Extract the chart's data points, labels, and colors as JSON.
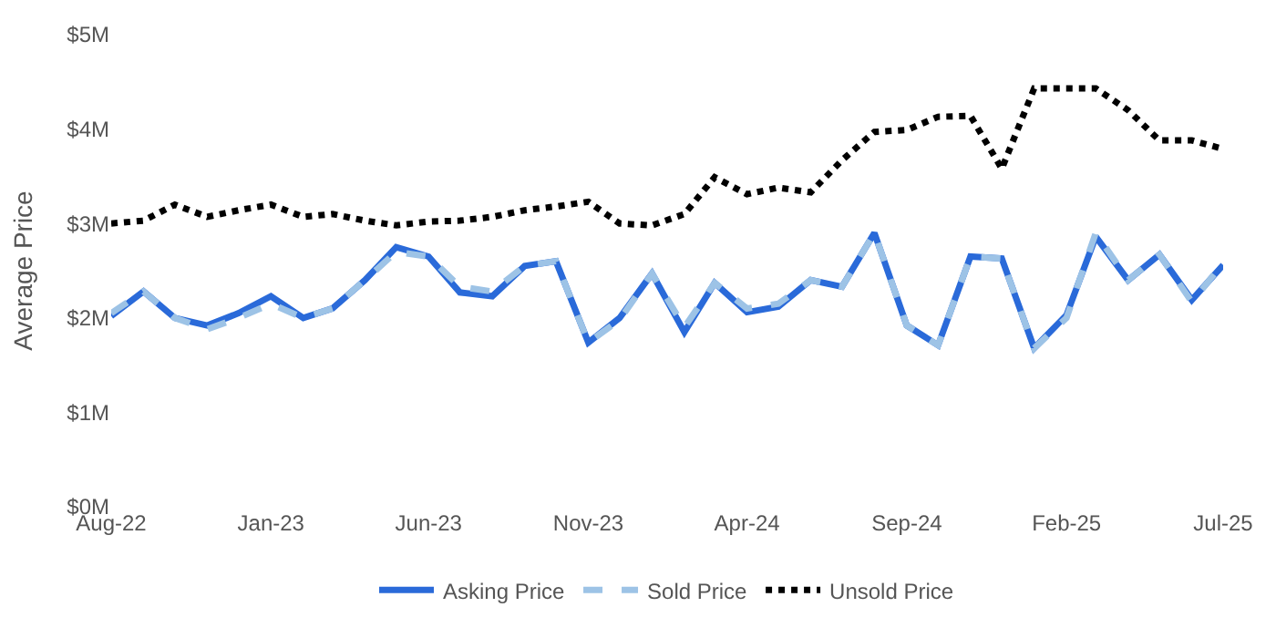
{
  "chart_data": {
    "type": "line",
    "ylabel": "Average Price",
    "x": [
      "2022-08",
      "2022-09",
      "2022-10",
      "2022-11",
      "2022-12",
      "2023-01",
      "2023-02",
      "2023-03",
      "2023-04",
      "2023-05",
      "2023-06",
      "2023-07",
      "2023-08",
      "2023-09",
      "2023-10",
      "2023-11",
      "2023-12",
      "2024-01",
      "2024-02",
      "2024-03",
      "2024-04",
      "2024-05",
      "2024-06",
      "2024-07",
      "2024-08",
      "2024-09",
      "2024-10",
      "2024-11",
      "2024-12",
      "2025-01",
      "2025-02",
      "2025-03",
      "2025-04",
      "2025-05",
      "2025-06",
      "2025-07"
    ],
    "series": [
      {
        "name": "Asking Price",
        "color": "#2a6ad9",
        "line_style": "solid",
        "values": [
          2.02,
          2.28,
          2.0,
          1.92,
          2.05,
          2.23,
          2.0,
          2.1,
          2.4,
          2.75,
          2.65,
          2.27,
          2.23,
          2.55,
          2.6,
          1.74,
          2.0,
          2.47,
          1.85,
          2.37,
          2.06,
          2.12,
          2.4,
          2.33,
          2.9,
          1.92,
          1.71,
          2.65,
          2.63,
          1.68,
          2.03,
          2.86,
          2.4,
          2.67,
          2.19,
          2.56
        ]
      },
      {
        "name": "Sold Price",
        "color": "#9dc3e6",
        "line_style": "dashed",
        "values": [
          2.05,
          2.28,
          2.0,
          1.88,
          2.0,
          2.15,
          2.0,
          2.1,
          2.4,
          2.7,
          2.65,
          2.33,
          2.28,
          2.55,
          2.6,
          1.74,
          1.98,
          2.47,
          1.9,
          2.37,
          2.1,
          2.15,
          2.4,
          2.33,
          2.9,
          1.92,
          1.71,
          2.65,
          2.63,
          1.68,
          2.0,
          2.9,
          2.4,
          2.67,
          2.17,
          2.58
        ]
      },
      {
        "name": "Unsold Price",
        "color": "#000000",
        "line_style": "dotted",
        "values": [
          3.0,
          3.03,
          3.2,
          3.07,
          3.14,
          3.2,
          3.07,
          3.1,
          3.03,
          2.98,
          3.02,
          3.03,
          3.07,
          3.14,
          3.18,
          3.23,
          3.0,
          2.98,
          3.1,
          3.49,
          3.31,
          3.38,
          3.33,
          3.67,
          3.97,
          3.99,
          4.13,
          4.14,
          3.58,
          4.43,
          4.43,
          4.43,
          4.2,
          3.88,
          3.88,
          3.79
        ]
      }
    ],
    "xlim": [
      "2022-08",
      "2025-07"
    ],
    "xticks": [
      {
        "value": "2022-08",
        "label": "Aug-22"
      },
      {
        "value": "2023-01",
        "label": "Jan-23"
      },
      {
        "value": "2023-06",
        "label": "Jun-23"
      },
      {
        "value": "2023-11",
        "label": "Nov-23"
      },
      {
        "value": "2024-04",
        "label": "Apr-24"
      },
      {
        "value": "2024-09",
        "label": "Sep-24"
      },
      {
        "value": "2025-02",
        "label": "Feb-25"
      },
      {
        "value": "2025-07",
        "label": "Jul-25"
      }
    ],
    "ylim": [
      0,
      5
    ],
    "yticks": [
      {
        "value": 0,
        "label": "$0M"
      },
      {
        "value": 1,
        "label": "$1M"
      },
      {
        "value": 2,
        "label": "$2M"
      },
      {
        "value": 3,
        "label": "$3M"
      },
      {
        "value": 4,
        "label": "$4M"
      },
      {
        "value": 5,
        "label": "$5M"
      }
    ],
    "grid": false,
    "legend": "bottom",
    "marker": "none"
  }
}
